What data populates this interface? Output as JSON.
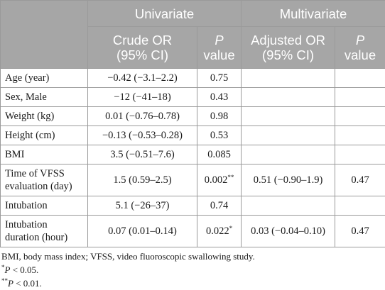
{
  "table": {
    "headers": {
      "group_univariate": "Univariate",
      "group_multivariate": "Multivariate",
      "crude_or_line1": "Crude OR",
      "crude_or_line2": "(95% CI)",
      "p_line1": "P",
      "p_line2": "value",
      "adjusted_or_line1": "Adjusted OR",
      "adjusted_or_line2": "(95% CI)",
      "p2_line1": "P",
      "p2_line2": "value"
    },
    "rows": [
      {
        "label": "Age (year)",
        "label2": "",
        "crude": "−0.42 (−3.1–2.2)",
        "p": "0.75",
        "adj": "",
        "p_adj": ""
      },
      {
        "label": "Sex, Male",
        "label2": "",
        "crude": "−12 (−41–18)",
        "p": "0.43",
        "adj": "",
        "p_adj": ""
      },
      {
        "label": "Weight (kg)",
        "label2": "",
        "crude": "0.01 (−0.76–0.78)",
        "p": "0.98",
        "adj": "",
        "p_adj": ""
      },
      {
        "label": "Height (cm)",
        "label2": "",
        "crude": "−0.13 (−0.53–0.28)",
        "p": "0.53",
        "adj": "",
        "p_adj": ""
      },
      {
        "label": "BMI",
        "label2": "",
        "crude": "3.5 (−0.51–7.6)",
        "p": "0.085",
        "adj": "",
        "p_adj": ""
      },
      {
        "label": "Time of VFSS",
        "label2": "evaluation (day)",
        "crude": "1.5 (0.59–2.5)",
        "p": "0.002",
        "p_mark": "**",
        "adj": "0.51 (−0.90–1.9)",
        "p_adj": "0.47"
      },
      {
        "label": "Intubation",
        "label2": "",
        "crude": "5.1 (−26–37)",
        "p": "0.74",
        "adj": "",
        "p_adj": ""
      },
      {
        "label": "Intubation",
        "label2": "duration (hour)",
        "crude": "0.07 (0.01–0.14)",
        "p": "0.022",
        "p_mark": "*",
        "adj": "0.03 (−0.04–0.10)",
        "p_adj": "0.47"
      }
    ]
  },
  "footnotes": {
    "abbrev": "BMI, body mass index; VFSS, video fluoroscopic swallowing study.",
    "note1_mark": "*",
    "note1_p": "P",
    "note1_rest": " < 0.05.",
    "note2_mark": "**",
    "note2_p": "P",
    "note2_rest": " < 0.01."
  }
}
